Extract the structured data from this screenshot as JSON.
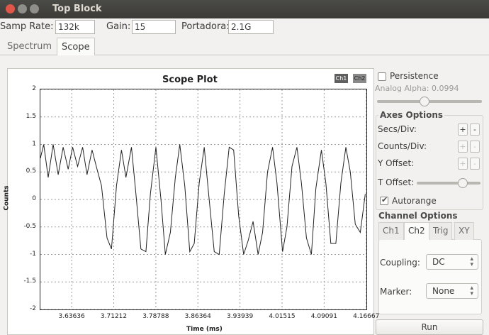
{
  "window": {
    "title": "Top Block",
    "close_color": "#e0574a",
    "min_color": "#8f8f8a",
    "max_color": "#8f8f8a"
  },
  "params": {
    "samp_rate_label": "Samp Rate:",
    "samp_rate_value": "132k",
    "gain_label": "Gain:",
    "gain_value": "15",
    "portadora_label": "Portadora:",
    "portadora_value": "2.1G"
  },
  "tabs": [
    "Spectrum",
    "Scope"
  ],
  "active_tab": "Scope",
  "plot": {
    "title": "Scope Plot",
    "ch1_label": "Ch1",
    "ch2_label": "Ch2",
    "ch1_color": "#5f5f5f",
    "ch2_color": "#8a8a8a"
  },
  "chart_data": {
    "type": "line",
    "title": "Scope Plot",
    "xlabel": "Time (ms)",
    "ylabel": "Counts",
    "xlim": [
      3.58,
      4.167
    ],
    "ylim": [
      -2,
      2
    ],
    "grid": true,
    "x_ticks": [
      "3.63636",
      "3.71212",
      "3.78788",
      "3.86364",
      "3.93939",
      "4.01515",
      "4.09091",
      "4.16667"
    ],
    "y_ticks": [
      "2",
      "1.5",
      "1",
      "0.5",
      "0",
      "-0.5",
      "-1",
      "-1.5",
      "-2"
    ],
    "series": [
      {
        "color": "#222222",
        "x": [
          3.58,
          3.586,
          3.594,
          3.603,
          3.612,
          3.621,
          3.63,
          3.638,
          3.647,
          3.656,
          3.664,
          3.673,
          3.682,
          3.69,
          3.7,
          3.708,
          3.717,
          3.726,
          3.734,
          3.744,
          3.752,
          3.761,
          3.77,
          3.778,
          3.788,
          3.797,
          3.805,
          3.814,
          3.823,
          3.831,
          3.84,
          3.849,
          3.857,
          3.866,
          3.875,
          3.883,
          3.893,
          3.902,
          3.911,
          3.92,
          3.928,
          3.937,
          3.946,
          3.954,
          3.963,
          3.972,
          3.98,
          3.989,
          3.998,
          4.006,
          4.016,
          4.024,
          4.033,
          4.042,
          4.05,
          4.059,
          4.068,
          4.076,
          4.086,
          4.094,
          4.103,
          4.112,
          4.121,
          4.13,
          4.138,
          4.147,
          4.156,
          4.165
        ],
        "values": [
          0.75,
          1.0,
          0.4,
          1.0,
          0.45,
          0.95,
          0.55,
          0.95,
          0.6,
          0.95,
          0.45,
          0.9,
          0.55,
          0.25,
          -0.7,
          -0.9,
          0.25,
          0.9,
          0.4,
          0.95,
          0.1,
          -0.9,
          -0.95,
          0.1,
          0.95,
          0.0,
          -1.0,
          -0.6,
          0.4,
          1.0,
          0.25,
          -0.95,
          -0.8,
          0.3,
          0.95,
          0.1,
          -0.95,
          -1.0,
          0.1,
          0.95,
          0.9,
          -0.3,
          -1.0,
          -0.75,
          -0.4,
          -1.0,
          -0.6,
          0.5,
          0.95,
          0.3,
          -0.95,
          -0.5,
          0.6,
          0.95,
          0.3,
          -0.7,
          -1.0,
          0.2,
          0.9,
          0.3,
          -0.8,
          -0.8,
          0.3,
          0.95,
          0.5,
          -0.45,
          -0.6,
          0.1
        ]
      }
    ]
  },
  "side": {
    "persistence_label": "Persistence",
    "persistence_checked": false,
    "analog_alpha_label": "Analog Alpha: 0.0994",
    "analog_alpha_level": 0.45,
    "axes_options_label": "Axes Options",
    "secs_div_label": "Secs/Div:",
    "counts_div_label": "Counts/Div:",
    "y_offset_label": "Y Offset:",
    "t_offset_label": "T Offset:",
    "t_offset_level": 0.72,
    "plus": "+",
    "minus": "-",
    "autorange_label": "Autorange",
    "autorange_checked": true,
    "check_mark": "✔",
    "channel_options_label": "Channel Options",
    "channel_tabs": [
      "Ch1",
      "Ch2",
      "Trig",
      "XY"
    ],
    "active_channel_tab": "Ch2",
    "coupling_label": "Coupling:",
    "coupling_value": "DC",
    "marker_label": "Marker:",
    "marker_value": "None",
    "run_label": "Run"
  }
}
